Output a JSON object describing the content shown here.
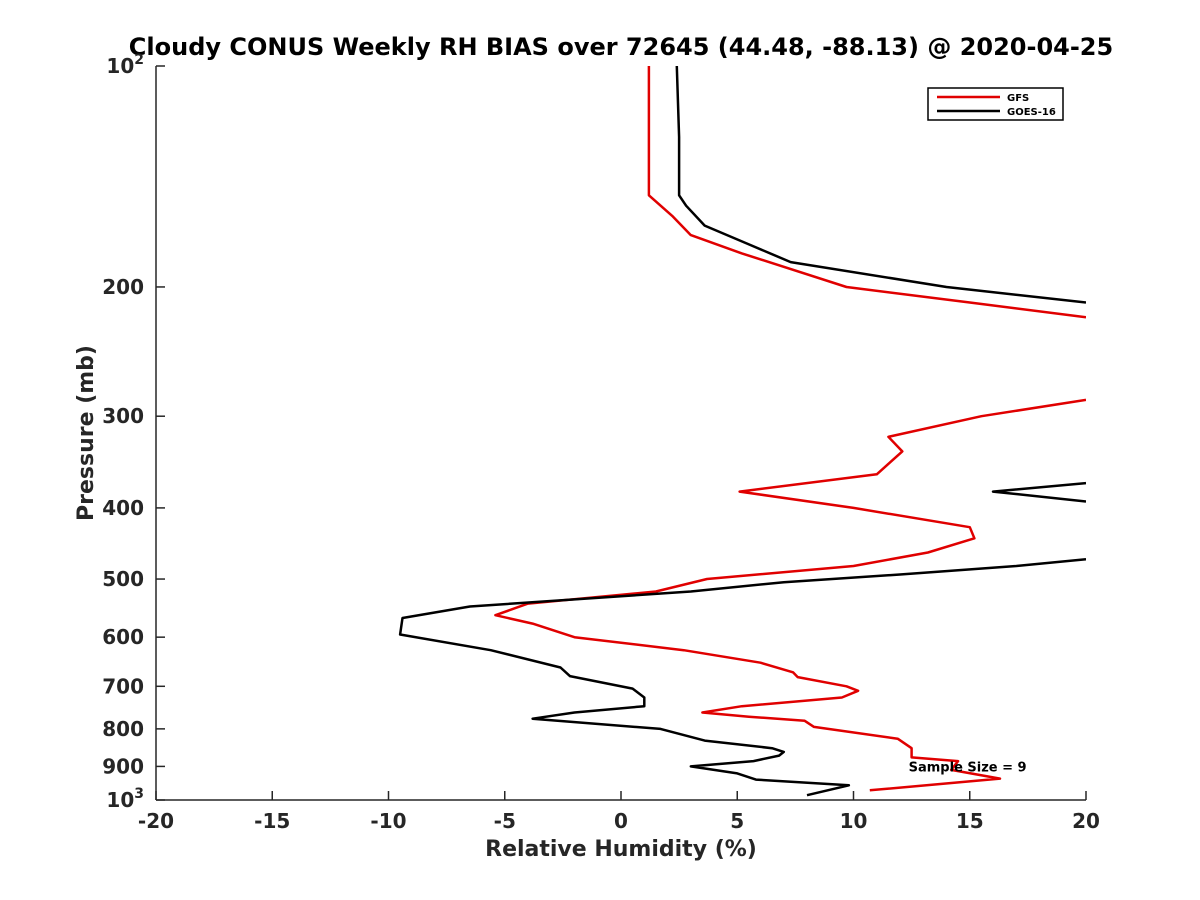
{
  "chart_data": {
    "type": "line",
    "title": "Cloudy CONUS Weekly RH BIAS over 72645 (44.48, -88.13) @ 2020-04-25",
    "xlabel": "Relative Humidity (%)",
    "ylabel": "Pressure (mb)",
    "xlim": [
      -20,
      20
    ],
    "ylim": [
      100,
      1000
    ],
    "yscale": "log",
    "y_reversed": true,
    "grid": false,
    "legend_position": "top-right",
    "x_ticks": [
      {
        "value": -20,
        "label": "-20"
      },
      {
        "value": -15,
        "label": "-15"
      },
      {
        "value": -10,
        "label": "-10"
      },
      {
        "value": -5,
        "label": "-5"
      },
      {
        "value": 0,
        "label": "0"
      },
      {
        "value": 5,
        "label": "5"
      },
      {
        "value": 10,
        "label": "10"
      },
      {
        "value": 15,
        "label": "15"
      },
      {
        "value": 20,
        "label": "20"
      }
    ],
    "y_ticks": [
      {
        "value": 100,
        "label": "10",
        "sup": "2"
      },
      {
        "value": 200,
        "label": "200",
        "sup": ""
      },
      {
        "value": 300,
        "label": "300",
        "sup": ""
      },
      {
        "value": 400,
        "label": "400",
        "sup": ""
      },
      {
        "value": 500,
        "label": "500",
        "sup": ""
      },
      {
        "value": 600,
        "label": "600",
        "sup": ""
      },
      {
        "value": 700,
        "label": "700",
        "sup": ""
      },
      {
        "value": 800,
        "label": "800",
        "sup": ""
      },
      {
        "value": 900,
        "label": "900",
        "sup": ""
      },
      {
        "value": 1000,
        "label": "10",
        "sup": "3"
      }
    ],
    "series": [
      {
        "name": "GFS",
        "color": "#e00000",
        "points": [
          [
            1.2,
            100
          ],
          [
            1.2,
            125
          ],
          [
            1.2,
            150
          ],
          [
            2.2,
            160
          ],
          [
            3.0,
            170
          ],
          [
            5.2,
            180
          ],
          [
            9.7,
            200
          ],
          [
            15.0,
            210
          ],
          [
            20.0,
            220
          ],
          [
            null,
            null
          ],
          [
            20.0,
            285
          ],
          [
            15.5,
            300
          ],
          [
            11.5,
            320
          ],
          [
            12.1,
            335
          ],
          [
            11.0,
            360
          ],
          [
            5.1,
            380
          ],
          [
            10.0,
            400
          ],
          [
            15.0,
            425
          ],
          [
            15.2,
            440
          ],
          [
            13.2,
            460
          ],
          [
            10.0,
            480
          ],
          [
            3.7,
            500
          ],
          [
            1.5,
            520
          ],
          [
            -4.0,
            540
          ],
          [
            -5.4,
            560
          ],
          [
            -3.8,
            575
          ],
          [
            -2.0,
            600
          ],
          [
            2.7,
            625
          ],
          [
            6.0,
            650
          ],
          [
            7.4,
            670
          ],
          [
            7.6,
            680
          ],
          [
            9.7,
            700
          ],
          [
            10.2,
            710
          ],
          [
            9.5,
            725
          ],
          [
            5.2,
            745
          ],
          [
            3.5,
            760
          ],
          [
            5.5,
            770
          ],
          [
            7.9,
            780
          ],
          [
            8.3,
            795
          ],
          [
            11.9,
            825
          ],
          [
            12.5,
            850
          ],
          [
            12.5,
            875
          ],
          [
            14.5,
            885
          ],
          [
            14.2,
            910
          ],
          [
            16.3,
            935
          ],
          [
            10.7,
            970
          ]
        ]
      },
      {
        "name": "GOES-16",
        "color": "#000000",
        "points": [
          [
            2.4,
            100
          ],
          [
            2.5,
            125
          ],
          [
            2.5,
            150
          ],
          [
            2.8,
            155
          ],
          [
            3.6,
            165
          ],
          [
            5.5,
            175
          ],
          [
            7.3,
            185
          ],
          [
            14.0,
            200
          ],
          [
            20.0,
            210
          ],
          [
            null,
            null
          ],
          [
            20.0,
            370
          ],
          [
            16.0,
            380
          ],
          [
            20.0,
            392
          ],
          [
            null,
            null
          ],
          [
            20.0,
            470
          ],
          [
            17.0,
            480
          ],
          [
            12.0,
            493
          ],
          [
            7.0,
            505
          ],
          [
            3.0,
            520
          ],
          [
            -6.5,
            545
          ],
          [
            -9.4,
            565
          ],
          [
            -9.5,
            595
          ],
          [
            -5.6,
            625
          ],
          [
            -2.6,
            660
          ],
          [
            -2.2,
            678
          ],
          [
            0.5,
            705
          ],
          [
            1.0,
            725
          ],
          [
            1.0,
            745
          ],
          [
            -2.0,
            760
          ],
          [
            -3.8,
            775
          ],
          [
            1.7,
            800
          ],
          [
            3.6,
            830
          ],
          [
            6.5,
            850
          ],
          [
            7.0,
            860
          ],
          [
            6.8,
            870
          ],
          [
            5.7,
            885
          ],
          [
            3.0,
            900
          ],
          [
            5.0,
            920
          ],
          [
            5.8,
            938
          ],
          [
            9.8,
            955
          ],
          [
            8.0,
            985
          ]
        ]
      }
    ],
    "annotations": [
      {
        "text": "Sample Size = 9",
        "x": 12.5,
        "y": 900
      }
    ]
  }
}
